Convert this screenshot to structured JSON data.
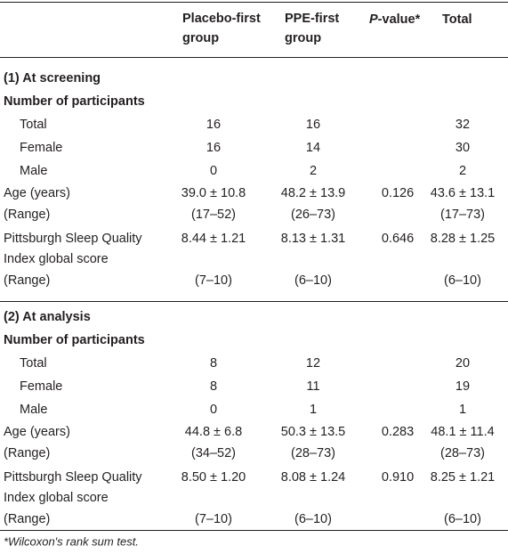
{
  "table": {
    "columns": [
      "Placebo-first group",
      "PPE-first group",
      {
        "italic": "P",
        "text": "-value*"
      },
      "Total"
    ],
    "sections": [
      {
        "title": "(1) At screening",
        "subtitle": "Number of participants",
        "counts": [
          {
            "label": "Total",
            "cells": [
              16,
              16,
              null,
              32
            ]
          },
          {
            "label": "Female",
            "cells": [
              16,
              14,
              null,
              30
            ]
          },
          {
            "label": "Male",
            "cells": [
              0,
              2,
              null,
              2
            ]
          }
        ],
        "measures": [
          {
            "label": [
              "Age (years)",
              "(Range)"
            ],
            "cells": [
              [
                "39.0 ± 10.8",
                "(17–52)"
              ],
              [
                "48.2 ± 13.9",
                "(26–73)"
              ],
              [
                "0.126"
              ],
              [
                "43.6 ± 13.1",
                "(17–73)"
              ]
            ]
          },
          {
            "label": [
              "Pittsburgh Sleep Quality",
              "Index global score",
              "(Range)"
            ],
            "cells": [
              [
                "8.44 ± 1.21",
                null,
                "(7–10)"
              ],
              [
                "8.13 ± 1.31",
                null,
                "(6–10)"
              ],
              [
                "0.646"
              ],
              [
                "8.28 ± 1.25",
                null,
                "(6–10)"
              ]
            ]
          }
        ]
      },
      {
        "title": "(2) At analysis",
        "subtitle": "Number of participants",
        "counts": [
          {
            "label": "Total",
            "cells": [
              8,
              12,
              null,
              20
            ]
          },
          {
            "label": "Female",
            "cells": [
              8,
              11,
              null,
              19
            ]
          },
          {
            "label": "Male",
            "cells": [
              0,
              1,
              null,
              1
            ]
          }
        ],
        "measures": [
          {
            "label": [
              "Age (years)",
              "(Range)"
            ],
            "cells": [
              [
                "44.8 ± 6.8",
                "(34–52)"
              ],
              [
                "50.3 ± 13.5",
                "(28–73)"
              ],
              [
                "0.283"
              ],
              [
                "48.1 ± 11.4",
                "(28–73)"
              ]
            ]
          },
          {
            "label": [
              "Pittsburgh Sleep Quality",
              "Index global score",
              "(Range)"
            ],
            "cells": [
              [
                "8.50 ± 1.20",
                null,
                "(7–10)"
              ],
              [
                "8.08 ± 1.24",
                null,
                "(6–10)"
              ],
              [
                "0.910"
              ],
              [
                "8.25 ± 1.21",
                null,
                "(6–10)"
              ]
            ]
          }
        ]
      }
    ],
    "footnote": "*Wilcoxon's rank sum test."
  }
}
